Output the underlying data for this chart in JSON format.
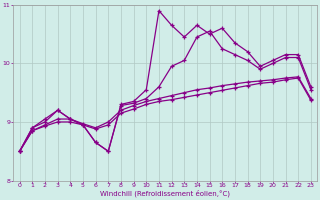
{
  "x": [
    0,
    1,
    2,
    3,
    4,
    5,
    6,
    7,
    8,
    9,
    10,
    11,
    12,
    13,
    14,
    15,
    16,
    17,
    18,
    19,
    20,
    21,
    22,
    23
  ],
  "line_zigzag": [
    8.5,
    8.9,
    9.0,
    9.2,
    9.05,
    8.95,
    8.65,
    8.5,
    9.3,
    9.35,
    9.55,
    10.9,
    10.65,
    10.45,
    10.65,
    10.5,
    10.6,
    10.35,
    10.2,
    9.95,
    10.05,
    10.15,
    10.15,
    9.6
  ],
  "line_mid": [
    8.5,
    8.9,
    9.05,
    9.2,
    9.05,
    8.95,
    8.65,
    8.5,
    9.28,
    9.32,
    9.4,
    9.6,
    9.95,
    10.05,
    10.45,
    10.55,
    10.25,
    10.15,
    10.05,
    9.9,
    10.0,
    10.1,
    10.1,
    9.55
  ],
  "line_reg1": [
    8.5,
    8.85,
    8.95,
    9.05,
    9.05,
    8.97,
    8.9,
    9.0,
    9.2,
    9.28,
    9.35,
    9.4,
    9.45,
    9.5,
    9.55,
    9.58,
    9.62,
    9.65,
    9.68,
    9.7,
    9.72,
    9.75,
    9.77,
    9.4
  ],
  "line_reg2": [
    8.5,
    8.85,
    8.93,
    9.0,
    9.0,
    8.95,
    8.88,
    8.95,
    9.15,
    9.22,
    9.3,
    9.35,
    9.38,
    9.42,
    9.46,
    9.5,
    9.54,
    9.58,
    9.62,
    9.66,
    9.68,
    9.72,
    9.75,
    9.37
  ],
  "xlim": [
    -0.5,
    23.5
  ],
  "ylim": [
    8,
    11
  ],
  "yticks": [
    8,
    9,
    10,
    11
  ],
  "xticks": [
    0,
    1,
    2,
    3,
    4,
    5,
    6,
    7,
    8,
    9,
    10,
    11,
    12,
    13,
    14,
    15,
    16,
    17,
    18,
    19,
    20,
    21,
    22,
    23
  ],
  "xlabel": "Windchill (Refroidissement éolien,°C)",
  "bg_color": "#d1ede8",
  "line_color": "#880088",
  "grid_color": "#b0c8c4",
  "marker": "+"
}
